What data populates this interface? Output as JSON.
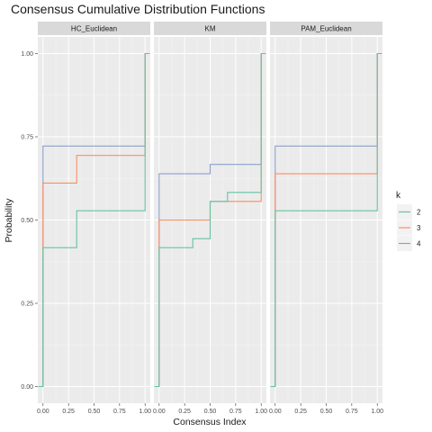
{
  "chart_data": {
    "type": "line",
    "title": "Consensus Cumulative Distribution Functions",
    "xlabel": "Consensus Index",
    "ylabel": "Probability",
    "xlim": [
      0,
      1
    ],
    "ylim": [
      0,
      1
    ],
    "x_ticks": [
      "0.00",
      "0.25",
      "0.50",
      "0.75",
      "1.00"
    ],
    "y_ticks": [
      "0.00",
      "0.25",
      "0.50",
      "0.75",
      "1.00"
    ],
    "grid": true,
    "legend": {
      "title": "k",
      "placement": "right",
      "entries": [
        {
          "label": "2",
          "color": "#66c2a5"
        },
        {
          "label": "3",
          "color": "#fc8d62"
        },
        {
          "label": "4",
          "color": "#8da0cb"
        }
      ]
    },
    "panels": [
      {
        "name": "HC_Euclidean",
        "series": [
          {
            "name": "2",
            "x": [
              0,
              0.33,
              1.0
            ],
            "y": [
              0.417,
              0.528,
              1.0
            ]
          },
          {
            "name": "3",
            "x": [
              0,
              0.33,
              1.0
            ],
            "y": [
              0.611,
              0.694,
              1.0
            ]
          },
          {
            "name": "4",
            "x": [
              0,
              1.0
            ],
            "y": [
              0.722,
              1.0
            ]
          }
        ]
      },
      {
        "name": "KM",
        "series": [
          {
            "name": "2",
            "x": [
              0,
              0.33,
              0.5,
              0.67,
              1.0
            ],
            "y": [
              0.417,
              0.444,
              0.556,
              0.583,
              1.0
            ]
          },
          {
            "name": "3",
            "x": [
              0,
              0.5,
              1.0
            ],
            "y": [
              0.5,
              0.556,
              1.0
            ]
          },
          {
            "name": "4",
            "x": [
              0,
              0.5,
              1.0
            ],
            "y": [
              0.639,
              0.667,
              1.0
            ]
          }
        ]
      },
      {
        "name": "PAM_Euclidean",
        "series": [
          {
            "name": "2",
            "x": [
              0,
              1.0
            ],
            "y": [
              0.528,
              1.0
            ]
          },
          {
            "name": "3",
            "x": [
              0,
              1.0
            ],
            "y": [
              0.639,
              1.0
            ]
          },
          {
            "name": "4",
            "x": [
              0,
              1.0
            ],
            "y": [
              0.722,
              1.0
            ]
          }
        ]
      }
    ]
  }
}
